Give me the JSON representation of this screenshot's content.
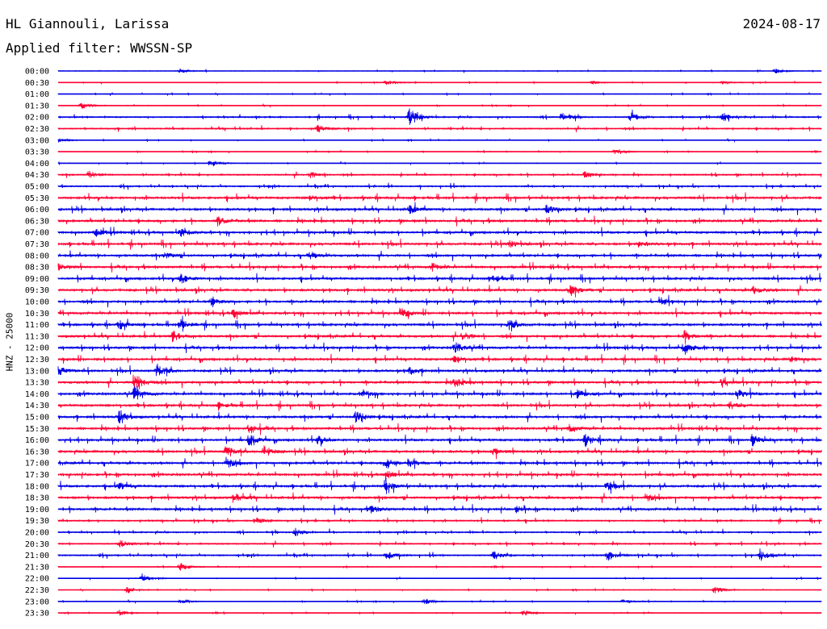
{
  "header": {
    "station": "HL Giannouli, Larissa",
    "date": "2024-08-17",
    "filter": "Applied filter: WWSSN-SP"
  },
  "axis": {
    "ylabel": "HNZ - 25000"
  },
  "colors": {
    "odd": "#0000e6",
    "even": "#ff0033"
  },
  "chart_data": {
    "type": "line",
    "subtype": "helicorder",
    "ylabel": "HNZ - 25000",
    "row_labels": [
      "00:00",
      "00:30",
      "01:00",
      "01:30",
      "02:00",
      "02:30",
      "03:00",
      "03:30",
      "04:00",
      "04:30",
      "05:00",
      "05:30",
      "06:00",
      "06:30",
      "07:00",
      "07:30",
      "08:00",
      "08:30",
      "09:00",
      "09:30",
      "10:00",
      "10:30",
      "11:00",
      "11:30",
      "12:00",
      "12:30",
      "13:00",
      "13:30",
      "14:00",
      "14:30",
      "15:00",
      "15:30",
      "16:00",
      "16:30",
      "17:00",
      "17:30",
      "18:00",
      "18:30",
      "19:00",
      "19:30",
      "20:00",
      "20:30",
      "21:00",
      "21:30",
      "22:00",
      "22:30",
      "23:00",
      "23:30"
    ],
    "row_colors": [
      "blue",
      "red",
      "blue",
      "red",
      "blue",
      "red",
      "blue",
      "red",
      "blue",
      "red",
      "blue",
      "red",
      "blue",
      "red",
      "blue",
      "red",
      "blue",
      "red",
      "blue",
      "red",
      "blue",
      "red",
      "blue",
      "red",
      "blue",
      "red",
      "blue",
      "red",
      "blue",
      "red",
      "blue",
      "red",
      "blue",
      "red",
      "blue",
      "red",
      "blue",
      "red",
      "blue",
      "red",
      "blue",
      "red",
      "blue",
      "red",
      "blue",
      "red",
      "blue",
      "red"
    ],
    "noise_level": [
      1,
      1,
      1,
      1,
      2,
      2,
      1,
      1,
      1,
      2,
      2,
      3,
      3,
      3,
      3,
      3,
      3,
      3,
      3,
      3,
      3,
      3,
      3,
      3,
      3,
      3,
      3,
      3,
      3,
      3,
      3,
      3,
      3,
      3,
      3,
      3,
      3,
      3,
      3,
      2,
      2,
      2,
      2,
      1,
      1,
      1,
      1,
      1
    ],
    "events": [
      [
        [
          0.16,
          3
        ],
        [
          0.94,
          3
        ]
      ],
      [
        [
          0.43,
          4
        ],
        [
          0.7,
          2
        ],
        [
          0.87,
          2
        ]
      ],
      [],
      [
        [
          0.03,
          4
        ]
      ],
      [
        [
          0.46,
          12
        ],
        [
          0.66,
          6
        ],
        [
          0.75,
          6
        ],
        [
          0.87,
          6
        ]
      ],
      [
        [
          0.34,
          5
        ]
      ],
      [
        [
          0.0,
          3
        ]
      ],
      [
        [
          0.73,
          5
        ]
      ],
      [
        [
          0.2,
          5
        ]
      ],
      [
        [
          0.04,
          5
        ],
        [
          0.33,
          4
        ],
        [
          0.69,
          4
        ]
      ],
      [],
      [
        [
          0.33,
          4
        ]
      ],
      [
        [
          0.46,
          6
        ],
        [
          0.64,
          7
        ]
      ],
      [
        [
          0.21,
          5
        ]
      ],
      [
        [
          0.05,
          6
        ],
        [
          0.16,
          5
        ]
      ],
      [
        [
          0.59,
          5
        ],
        [
          0.76,
          4
        ]
      ],
      [
        [
          0.14,
          4
        ],
        [
          0.33,
          5
        ]
      ],
      [
        [
          0.0,
          4
        ],
        [
          0.49,
          5
        ]
      ],
      [
        [
          0.16,
          7
        ],
        [
          0.57,
          5
        ]
      ],
      [
        [
          0.67,
          8
        ],
        [
          0.91,
          5
        ]
      ],
      [
        [
          0.2,
          5
        ],
        [
          0.79,
          5
        ]
      ],
      [
        [
          0.23,
          6
        ],
        [
          0.45,
          6
        ]
      ],
      [
        [
          0.08,
          6
        ],
        [
          0.16,
          7
        ],
        [
          0.59,
          7
        ]
      ],
      [
        [
          0.15,
          7
        ],
        [
          0.53,
          6
        ],
        [
          0.82,
          7
        ]
      ],
      [
        [
          0.52,
          7
        ],
        [
          0.82,
          9
        ]
      ],
      [
        [
          0.52,
          6
        ],
        [
          0.96,
          4
        ]
      ],
      [
        [
          0.0,
          6
        ],
        [
          0.13,
          9
        ],
        [
          0.46,
          5
        ]
      ],
      [
        [
          0.1,
          14
        ],
        [
          0.52,
          6
        ],
        [
          0.87,
          6
        ]
      ],
      [
        [
          0.1,
          9
        ],
        [
          0.4,
          6
        ],
        [
          0.68,
          6
        ],
        [
          0.89,
          6
        ]
      ],
      [
        [
          0.21,
          4
        ],
        [
          0.88,
          5
        ]
      ],
      [
        [
          0.08,
          8
        ],
        [
          0.39,
          9
        ]
      ],
      [
        [
          0.25,
          7
        ],
        [
          0.67,
          5
        ]
      ],
      [
        [
          0.25,
          8
        ],
        [
          0.34,
          6
        ],
        [
          0.69,
          7
        ],
        [
          0.91,
          7
        ]
      ],
      [
        [
          0.22,
          8
        ],
        [
          0.27,
          7
        ],
        [
          0.57,
          5
        ]
      ],
      [
        [
          0.22,
          7
        ],
        [
          0.43,
          7
        ],
        [
          0.46,
          6
        ]
      ],
      [
        [
          0.43,
          6
        ]
      ],
      [
        [
          0.08,
          5
        ],
        [
          0.43,
          7
        ],
        [
          0.72,
          5
        ]
      ],
      [
        [
          0.23,
          6
        ],
        [
          0.77,
          5
        ]
      ],
      [
        [
          0.41,
          5
        ],
        [
          0.6,
          4
        ]
      ],
      [
        [
          0.26,
          4
        ]
      ],
      [
        [
          0.31,
          6
        ]
      ],
      [
        [
          0.08,
          5
        ]
      ],
      [
        [
          0.43,
          6
        ],
        [
          0.57,
          6
        ],
        [
          0.72,
          7
        ],
        [
          0.92,
          7
        ]
      ],
      [
        [
          0.16,
          6
        ]
      ],
      [
        [
          0.11,
          5
        ]
      ],
      [
        [
          0.09,
          5
        ],
        [
          0.86,
          5
        ]
      ],
      [
        [
          0.16,
          3
        ],
        [
          0.48,
          4
        ],
        [
          0.74,
          3
        ]
      ],
      [
        [
          0.08,
          4
        ],
        [
          0.61,
          4
        ]
      ]
    ]
  }
}
